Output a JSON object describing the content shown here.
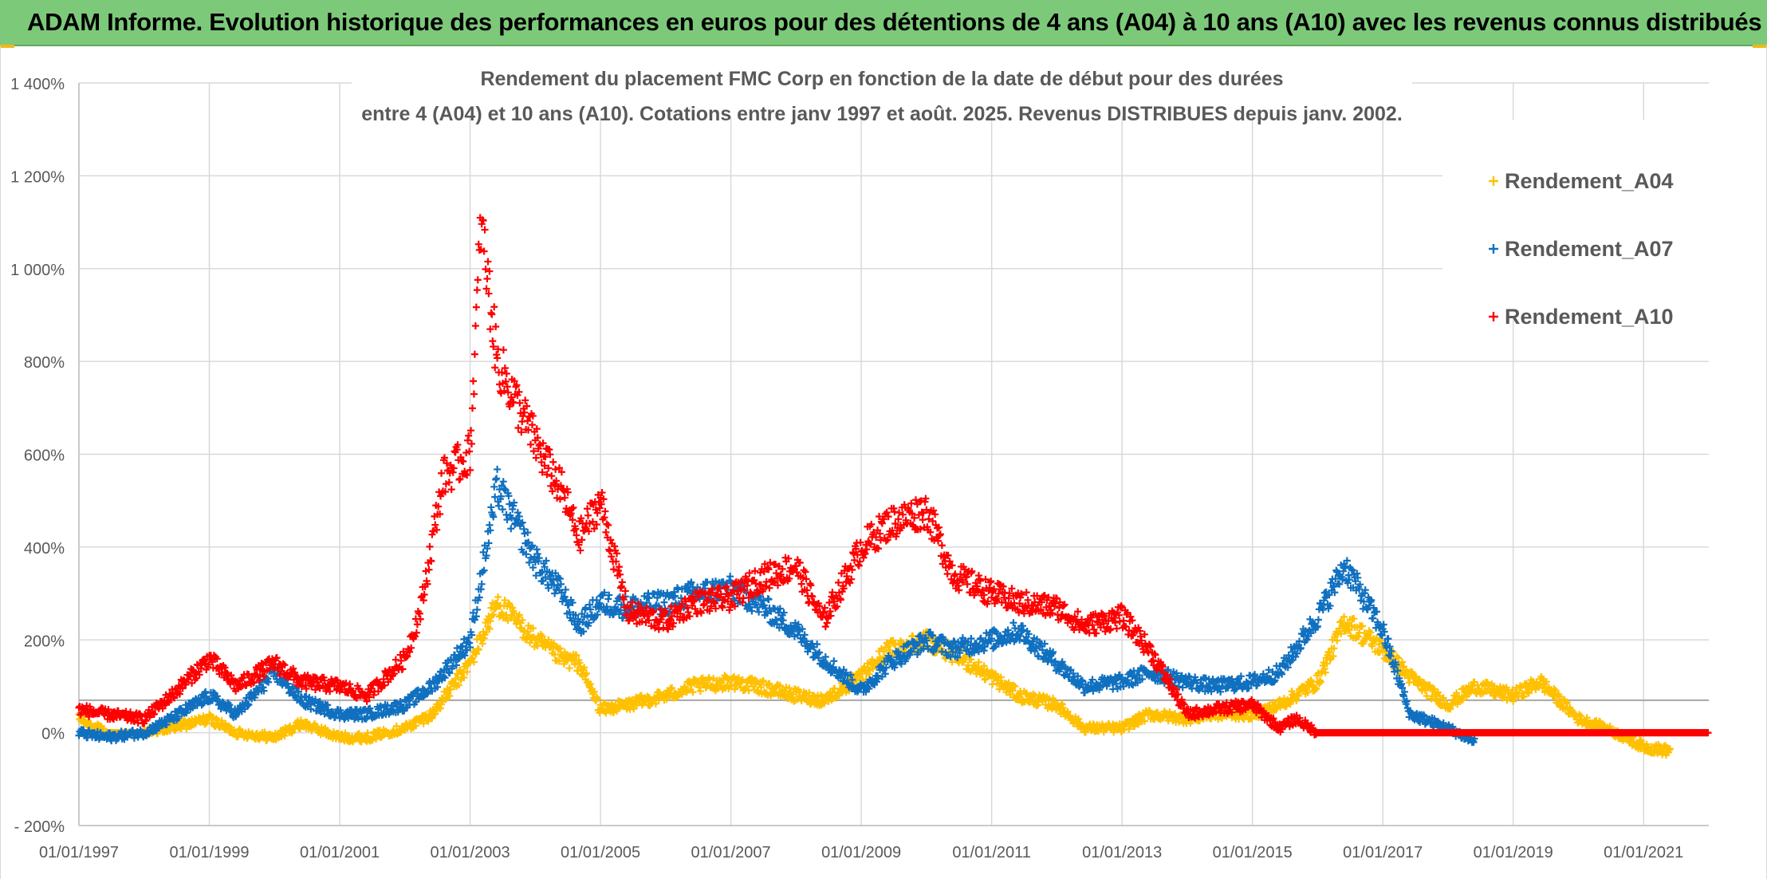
{
  "banner": {
    "title": "ADAM Informe. Evolution historique des performances en euros pour des détentions de 4 ans (A04) à 10 ans (A10) avec les revenus connus distribués"
  },
  "chart_data": {
    "type": "scatter",
    "title_line1": "Rendement du placement FMC Corp en fonction de la date de début pour des durées",
    "title_line2": "entre 4 (A04) et 10 ans (A10). Cotations entre janv 1997 et août. 2025. Revenus DISTRIBUES depuis janv. 2002.",
    "xlabel": "",
    "ylabel": "",
    "xlim": [
      "1997-01-01",
      "2022-01-01"
    ],
    "ylim": [
      -200,
      1400
    ],
    "x_ticks": [
      "01/01/1997",
      "01/01/1999",
      "01/01/2001",
      "01/01/2003",
      "01/01/2005",
      "01/01/2007",
      "01/01/2009",
      "01/01/2011",
      "01/01/2013",
      "01/01/2015",
      "01/01/2017",
      "01/01/2019",
      "01/01/2021"
    ],
    "y_ticks": [
      "- 200%",
      "0%",
      "200%",
      "400%",
      "600%",
      "800%",
      "1 000%",
      "1 200%",
      "1 400%"
    ],
    "reference_line_y": 70,
    "grid": true,
    "legend_position": "right",
    "marker": "+",
    "series": [
      {
        "name": "Rendement_A04",
        "color": "#ffc000",
        "x": [
          "1997-01",
          "1997-06",
          "1998-01",
          "1998-06",
          "1999-01",
          "1999-06",
          "2000-01",
          "2000-06",
          "2001-01",
          "2001-06",
          "2002-01",
          "2002-06",
          "2003-01",
          "2003-06",
          "2004-01",
          "2004-06",
          "2004-09",
          "2005-01",
          "2005-06",
          "2006-01",
          "2006-06",
          "2007-01",
          "2007-06",
          "2008-01",
          "2008-06",
          "2009-01",
          "2009-06",
          "2010-01",
          "2010-06",
          "2011-01",
          "2011-06",
          "2012-01",
          "2012-06",
          "2013-01",
          "2013-06",
          "2014-01",
          "2014-06",
          "2015-01",
          "2015-06",
          "2016-01",
          "2016-06",
          "2017-01",
          "2017-06",
          "2018-01",
          "2018-06",
          "2019-01",
          "2019-06",
          "2020-01",
          "2020-06",
          "2021-01",
          "2021-06"
        ],
        "values": [
          30,
          0,
          0,
          10,
          30,
          0,
          -10,
          20,
          -10,
          -10,
          10,
          40,
          150,
          280,
          200,
          160,
          150,
          50,
          60,
          80,
          100,
          110,
          100,
          80,
          70,
          120,
          180,
          200,
          170,
          120,
          80,
          60,
          10,
          10,
          40,
          30,
          40,
          40,
          60,
          110,
          240,
          180,
          120,
          60,
          100,
          80,
          110,
          30,
          10,
          -30,
          -40
        ]
      },
      {
        "name": "Rendement_A07",
        "color": "#1070c0",
        "x": [
          "1997-01",
          "1997-06",
          "1998-01",
          "1998-06",
          "1999-01",
          "1999-06",
          "2000-01",
          "2000-06",
          "2001-01",
          "2001-06",
          "2002-01",
          "2002-06",
          "2003-01",
          "2003-06",
          "2004-01",
          "2004-06",
          "2004-09",
          "2005-01",
          "2005-06",
          "2006-01",
          "2006-06",
          "2007-01",
          "2007-06",
          "2008-01",
          "2008-06",
          "2009-01",
          "2009-06",
          "2010-01",
          "2010-06",
          "2011-01",
          "2011-06",
          "2012-01",
          "2012-06",
          "2013-01",
          "2013-06",
          "2014-01",
          "2014-06",
          "2015-01",
          "2015-06",
          "2016-01",
          "2016-06",
          "2017-01",
          "2017-06",
          "2018-01",
          "2018-06"
        ],
        "values": [
          0,
          -10,
          0,
          30,
          80,
          40,
          130,
          70,
          40,
          40,
          60,
          100,
          200,
          530,
          370,
          300,
          230,
          280,
          270,
          280,
          300,
          310,
          280,
          220,
          160,
          90,
          150,
          200,
          180,
          200,
          220,
          150,
          100,
          110,
          130,
          110,
          100,
          110,
          130,
          250,
          360,
          220,
          40,
          10,
          -20
        ]
      },
      {
        "name": "Rendement_A10",
        "color": "#ff0000",
        "x": [
          "1997-01",
          "1997-06",
          "1998-01",
          "1998-06",
          "1999-01",
          "1999-06",
          "2000-01",
          "2000-06",
          "2001-01",
          "2001-06",
          "2002-01",
          "2002-04",
          "2002-08",
          "2003-01",
          "2003-03",
          "2003-06",
          "2003-10",
          "2004-03",
          "2004-06",
          "2004-09",
          "2005-01",
          "2005-06",
          "2006-01",
          "2006-06",
          "2007-01",
          "2007-06",
          "2008-01",
          "2008-06",
          "2009-01",
          "2009-06",
          "2010-01",
          "2010-06",
          "2011-01",
          "2011-06",
          "2012-01",
          "2012-06",
          "2013-01",
          "2013-06",
          "2014-01",
          "2014-06",
          "2015-01",
          "2015-06",
          "2015-09",
          "2016-01",
          "2017-01",
          "2018-01",
          "2019-01",
          "2020-01",
          "2021-01",
          "2022-01"
        ],
        "values": [
          50,
          40,
          30,
          80,
          160,
          100,
          150,
          110,
          100,
          80,
          160,
          270,
          550,
          600,
          1100,
          800,
          700,
          580,
          520,
          420,
          500,
          260,
          240,
          280,
          290,
          330,
          360,
          240,
          400,
          450,
          480,
          340,
          300,
          280,
          270,
          230,
          250,
          180,
          40,
          50,
          60,
          10,
          30,
          0,
          0,
          0,
          0,
          0,
          0,
          0
        ]
      }
    ]
  }
}
